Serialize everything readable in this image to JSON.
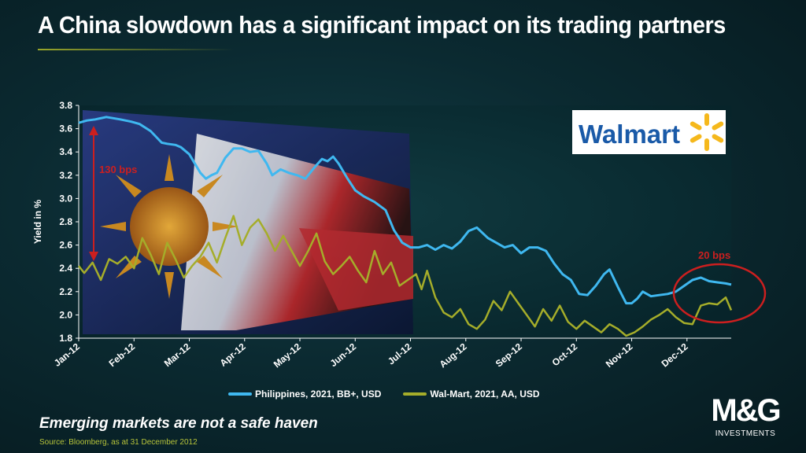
{
  "title": "A China slowdown has a significant impact on its trading partners",
  "subtitle": "Emerging markets are not a safe haven",
  "source": "Source: Bloomberg, as at  31 December 2012",
  "logos": {
    "walmart_text": "Walmart",
    "mg_mark": "M&G",
    "mg_sub": "INVESTMENTS"
  },
  "colors": {
    "philippines": "#3fb8f0",
    "walmart": "#a5ad2a",
    "annotation": "#cc1f1f",
    "walmart_blue": "#1a5aa8",
    "walmart_yellow": "#f5b81c"
  },
  "chart_data": {
    "type": "line",
    "title": "",
    "xlabel": "",
    "ylabel": "Yield in %",
    "ylim": [
      1.8,
      3.8
    ],
    "yticks": [
      "3.8",
      "3.6",
      "3.4",
      "3.2",
      "3.0",
      "2.8",
      "2.6",
      "2.4",
      "2.2",
      "2.0",
      "1.8"
    ],
    "categories": [
      "Jan-12",
      "Feb-12",
      "Mar-12",
      "Apr-12",
      "May-12",
      "Jun-12",
      "Jul-12",
      "Aug-12",
      "Sep-12",
      "Oct-12",
      "Nov-12",
      "Dec-12"
    ],
    "x_range_months": [
      0,
      11.8
    ],
    "series": [
      {
        "name": "Philippines, 2021, BB+, USD",
        "color": "#3fb8f0",
        "x": [
          0,
          0.15,
          0.3,
          0.5,
          0.75,
          0.95,
          1.1,
          1.3,
          1.5,
          1.6,
          1.75,
          1.85,
          2.0,
          2.2,
          2.3,
          2.4,
          2.5,
          2.65,
          2.8,
          2.95,
          3.1,
          3.25,
          3.4,
          3.5,
          3.65,
          3.8,
          3.95,
          4.1,
          4.25,
          4.4,
          4.5,
          4.6,
          4.7,
          4.85,
          5.0,
          5.15,
          5.35,
          5.55,
          5.7,
          5.85,
          6.0,
          6.15,
          6.3,
          6.45,
          6.6,
          6.75,
          6.9,
          7.05,
          7.2,
          7.4,
          7.55,
          7.7,
          7.85,
          8.0,
          8.15,
          8.3,
          8.45,
          8.6,
          8.75,
          8.9,
          9.05,
          9.2,
          9.35,
          9.5,
          9.6,
          9.75,
          9.9,
          10.0,
          10.1,
          10.2,
          10.35,
          10.5,
          10.65,
          10.8,
          10.95,
          11.1,
          11.25,
          11.4,
          11.55,
          11.7,
          11.8
        ],
        "values": [
          3.65,
          3.67,
          3.68,
          3.7,
          3.68,
          3.66,
          3.64,
          3.58,
          3.48,
          3.47,
          3.46,
          3.44,
          3.38,
          3.22,
          3.17,
          3.2,
          3.22,
          3.35,
          3.43,
          3.43,
          3.4,
          3.41,
          3.3,
          3.2,
          3.25,
          3.22,
          3.2,
          3.17,
          3.26,
          3.34,
          3.32,
          3.36,
          3.3,
          3.18,
          3.07,
          3.02,
          2.97,
          2.9,
          2.73,
          2.62,
          2.58,
          2.58,
          2.6,
          2.56,
          2.6,
          2.57,
          2.63,
          2.72,
          2.75,
          2.66,
          2.62,
          2.58,
          2.6,
          2.53,
          2.58,
          2.58,
          2.55,
          2.44,
          2.35,
          2.3,
          2.18,
          2.17,
          2.25,
          2.35,
          2.39,
          2.24,
          2.1,
          2.1,
          2.14,
          2.2,
          2.16,
          2.17,
          2.18,
          2.2,
          2.25,
          2.3,
          2.32,
          2.29,
          2.28,
          2.27,
          2.26
        ]
      },
      {
        "name": "Wal-Mart, 2021, AA, USD",
        "color": "#a5ad2a",
        "x": [
          0,
          0.1,
          0.25,
          0.4,
          0.55,
          0.7,
          0.85,
          1.0,
          1.15,
          1.3,
          1.45,
          1.6,
          1.75,
          1.9,
          2.05,
          2.2,
          2.35,
          2.5,
          2.65,
          2.8,
          2.95,
          3.1,
          3.25,
          3.4,
          3.55,
          3.7,
          3.85,
          4.0,
          4.15,
          4.3,
          4.45,
          4.6,
          4.75,
          4.9,
          5.05,
          5.2,
          5.35,
          5.5,
          5.65,
          5.8,
          5.95,
          6.1,
          6.2,
          6.3,
          6.45,
          6.6,
          6.75,
          6.9,
          7.05,
          7.2,
          7.35,
          7.5,
          7.65,
          7.8,
          7.95,
          8.1,
          8.25,
          8.4,
          8.55,
          8.7,
          8.85,
          9.0,
          9.15,
          9.3,
          9.45,
          9.6,
          9.75,
          9.9,
          10.05,
          10.2,
          10.35,
          10.5,
          10.65,
          10.8,
          10.95,
          11.1,
          11.25,
          11.4,
          11.55,
          11.7,
          11.8
        ],
        "values": [
          2.42,
          2.36,
          2.45,
          2.3,
          2.48,
          2.44,
          2.5,
          2.4,
          2.66,
          2.52,
          2.35,
          2.62,
          2.48,
          2.32,
          2.42,
          2.5,
          2.62,
          2.45,
          2.66,
          2.85,
          2.6,
          2.75,
          2.82,
          2.7,
          2.55,
          2.68,
          2.55,
          2.42,
          2.55,
          2.7,
          2.46,
          2.35,
          2.42,
          2.5,
          2.38,
          2.28,
          2.55,
          2.35,
          2.45,
          2.25,
          2.3,
          2.35,
          2.22,
          2.38,
          2.15,
          2.02,
          1.98,
          2.05,
          1.92,
          1.88,
          1.96,
          2.12,
          2.04,
          2.2,
          2.1,
          2.0,
          1.9,
          2.05,
          1.95,
          2.08,
          1.94,
          1.88,
          1.95,
          1.9,
          1.85,
          1.92,
          1.88,
          1.82,
          1.85,
          1.9,
          1.96,
          2.0,
          2.05,
          1.98,
          1.93,
          1.92,
          2.08,
          2.1,
          2.09,
          2.15,
          2.04
        ]
      }
    ],
    "annotations": [
      {
        "text": "130 bps",
        "color": "#cc1f1f"
      },
      {
        "text": "20 bps",
        "color": "#cc1f1f"
      }
    ],
    "grid": false,
    "legend_placement": "bottom"
  }
}
